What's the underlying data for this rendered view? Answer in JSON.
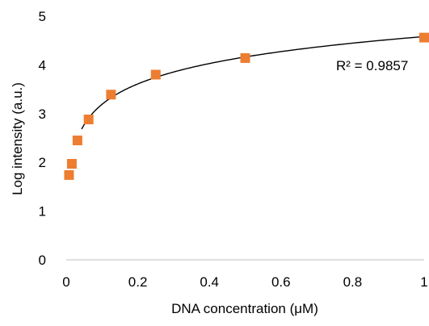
{
  "chart_data": {
    "type": "scatter",
    "title": "",
    "xlabel": "DNA concentration (μM)",
    "ylabel": "Log intensity (a.u.)",
    "xlim": [
      0,
      1
    ],
    "ylim": [
      0,
      5
    ],
    "x_ticks": [
      0,
      0.2,
      0.4,
      0.6,
      0.8,
      1
    ],
    "x_tick_labels": [
      "0",
      "0.2",
      "0.4",
      "0.6",
      "0.8",
      "1"
    ],
    "y_ticks": [
      0,
      1,
      2,
      3,
      4,
      5
    ],
    "y_tick_labels": [
      "0",
      "1",
      "2",
      "3",
      "4",
      "5"
    ],
    "grid": false,
    "legend": "none",
    "series": [
      {
        "marker": "square",
        "color": "#ED7D31",
        "x": [
          0.0078,
          0.0156,
          0.0313,
          0.0625,
          0.125,
          0.25,
          0.5,
          1
        ],
        "y": [
          1.74,
          1.97,
          2.45,
          2.88,
          3.39,
          3.8,
          4.14,
          4.56
        ]
      }
    ],
    "trendline": {
      "type": "logarithmic",
      "color": "#000000",
      "x_range": [
        0.043,
        1
      ],
      "r_squared_label": "R² = 0.9857"
    }
  }
}
